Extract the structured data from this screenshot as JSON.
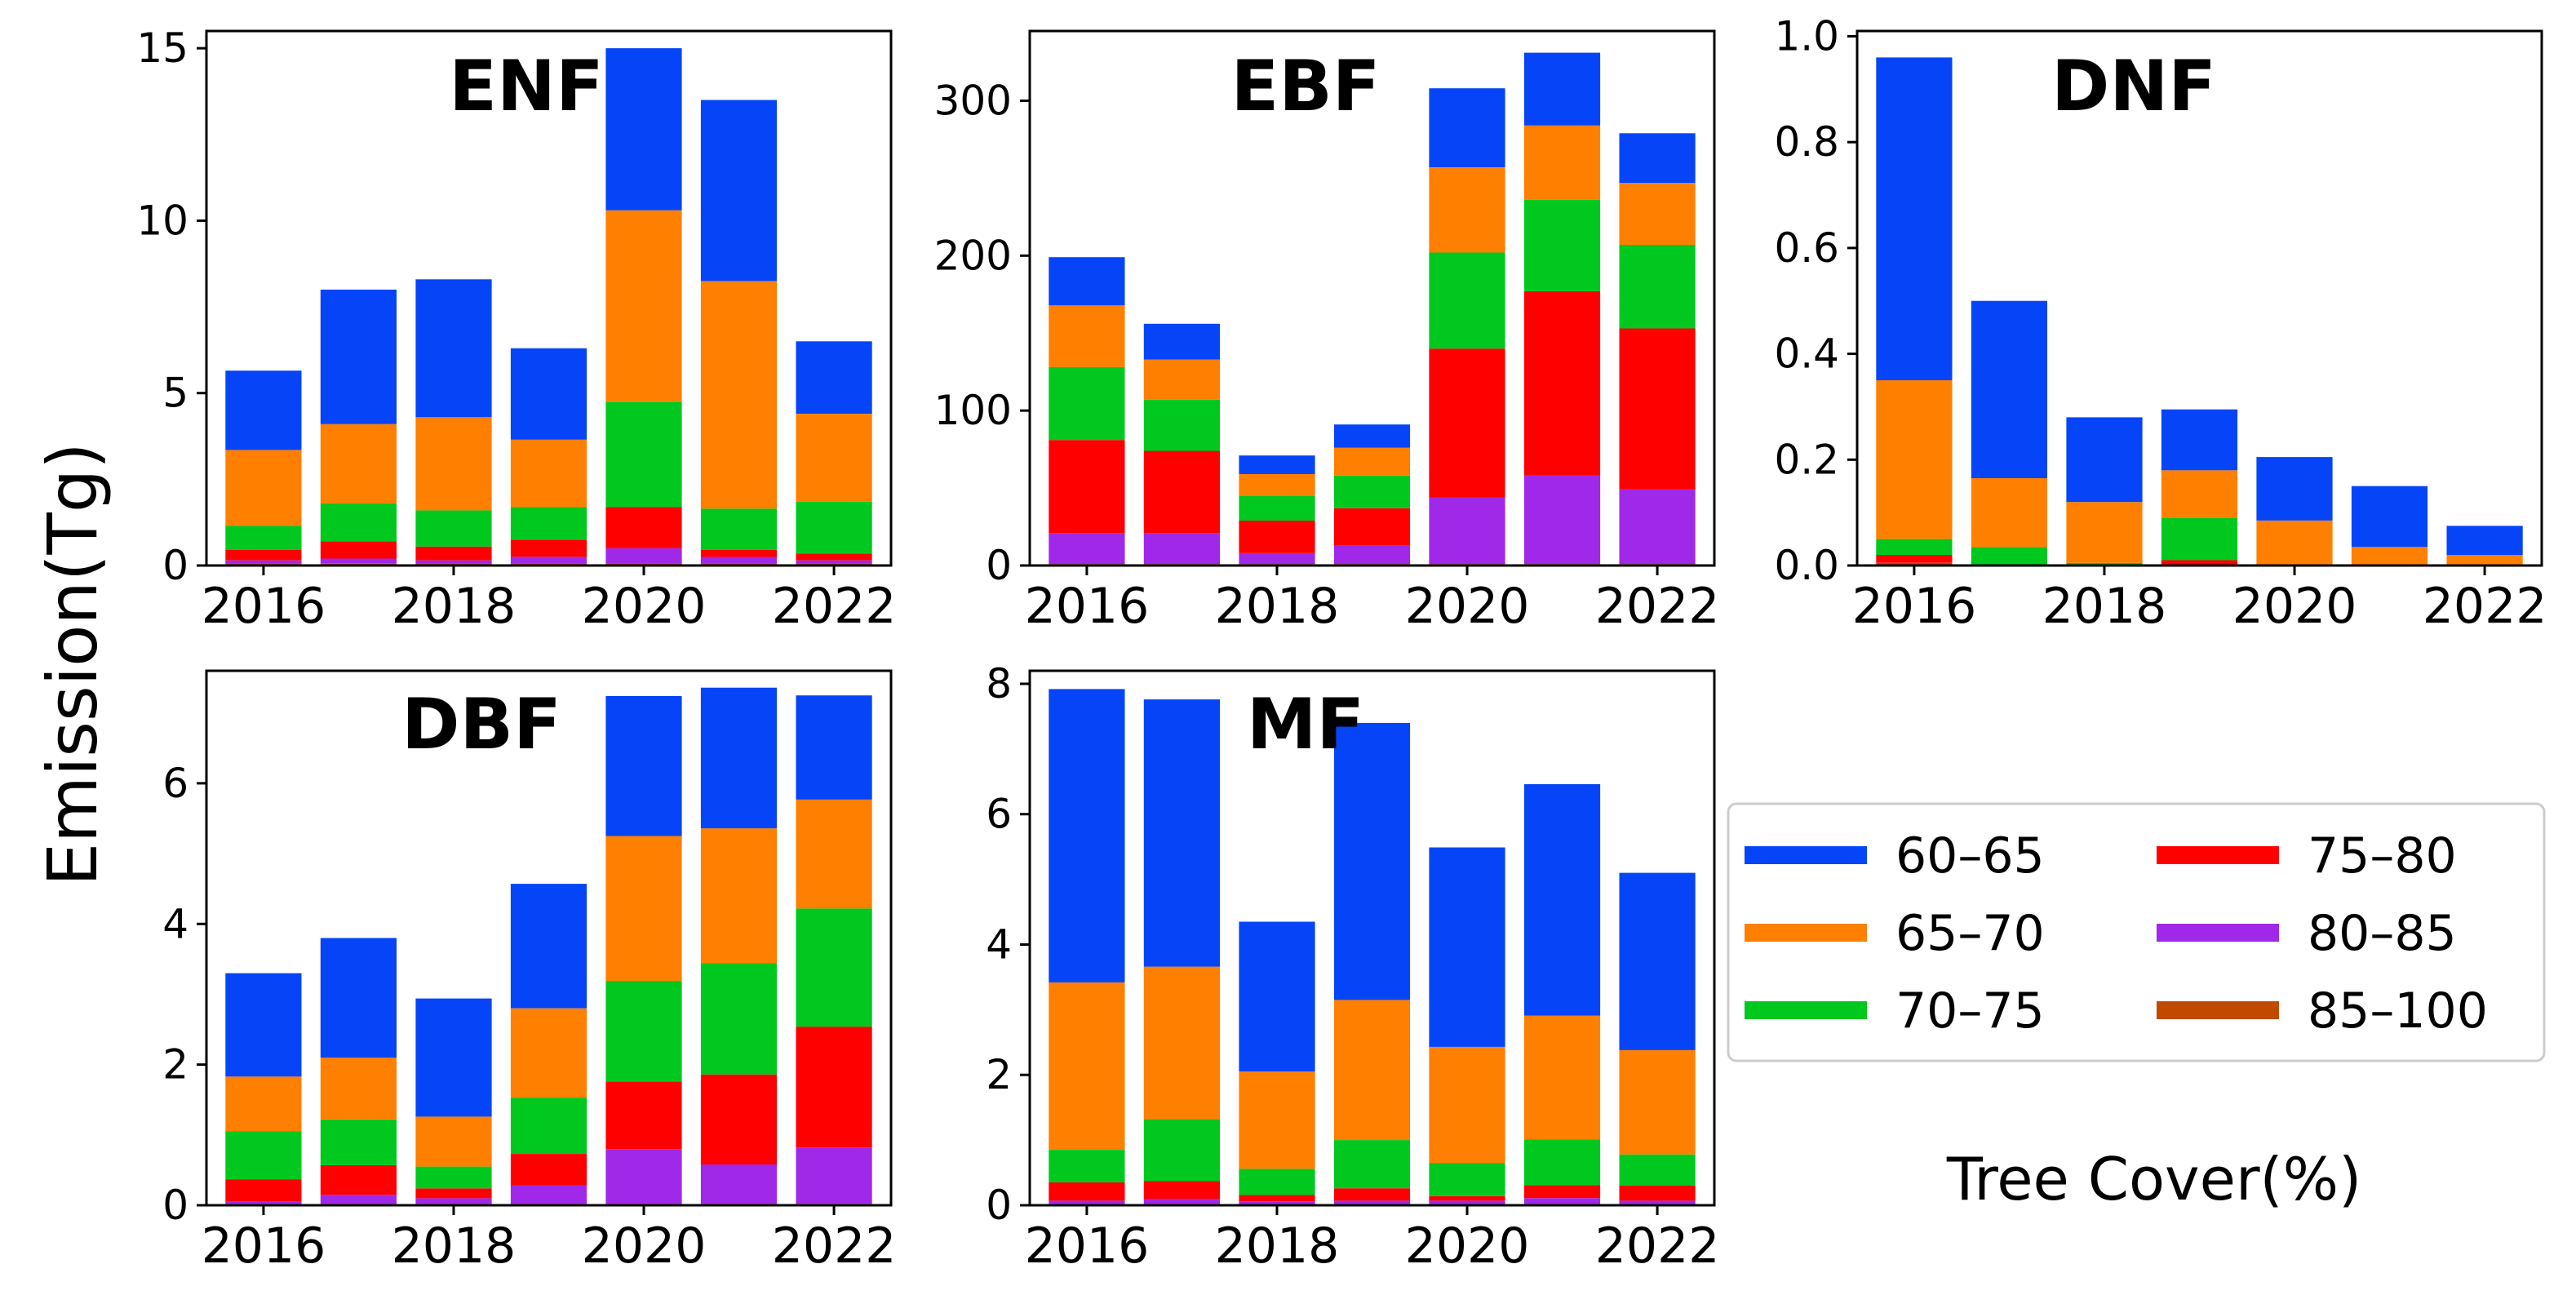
{
  "figure": {
    "ylabel": "Emission(Tg)",
    "legend_title": "Tree Cover(%)"
  },
  "colors": {
    "60–65": "#0545f7",
    "65–70": "#ff7f00",
    "70–75": "#00c81e",
    "75–80": "#ff0000",
    "80–85": "#a028e8",
    "85–100": "#bf4a00"
  },
  "chart_data": [
    {
      "type": "bar",
      "stacked": true,
      "title": "ENF",
      "x": [
        2016,
        2017,
        2018,
        2019,
        2020,
        2021,
        2022
      ],
      "xticks": [
        "2016",
        "2018",
        "2020",
        "2022"
      ],
      "ylim": [
        0,
        15.5
      ],
      "yticks": [
        "0",
        "5",
        "10",
        "15"
      ],
      "ytick_values": [
        0,
        5,
        10,
        15
      ],
      "series": [
        {
          "name": "85–100",
          "values": [
            0.05,
            0.05,
            0.05,
            0.05,
            0.05,
            0.05,
            0.05
          ]
        },
        {
          "name": "80–85",
          "values": [
            0.1,
            0.15,
            0.1,
            0.2,
            0.45,
            0.2,
            0.1
          ]
        },
        {
          "name": "75–80",
          "values": [
            0.3,
            0.5,
            0.4,
            0.5,
            1.2,
            0.2,
            0.2
          ]
        },
        {
          "name": "70–75",
          "values": [
            0.7,
            1.1,
            1.05,
            0.95,
            3.05,
            1.2,
            1.5
          ]
        },
        {
          "name": "65–70",
          "values": [
            2.2,
            2.3,
            2.7,
            1.95,
            5.55,
            6.6,
            2.55
          ]
        },
        {
          "name": "60–65",
          "values": [
            2.3,
            3.9,
            4.0,
            2.65,
            4.7,
            5.25,
            2.1
          ]
        }
      ]
    },
    {
      "type": "bar",
      "stacked": true,
      "title": "EBF",
      "x": [
        2016,
        2017,
        2018,
        2019,
        2020,
        2021,
        2022
      ],
      "xticks": [
        "2016",
        "2018",
        "2020",
        "2022"
      ],
      "ylim": [
        0,
        345
      ],
      "yticks": [
        "0",
        "100",
        "200",
        "300"
      ],
      "ytick_values": [
        0,
        100,
        200,
        300
      ],
      "series": [
        {
          "name": "85–100",
          "values": [
            1,
            1,
            1,
            1,
            1,
            1,
            1
          ]
        },
        {
          "name": "80–85",
          "values": [
            20,
            20,
            7,
            12,
            43,
            57,
            48
          ]
        },
        {
          "name": "75–80",
          "values": [
            60,
            53,
            21,
            24,
            96,
            119,
            104
          ]
        },
        {
          "name": "70–75",
          "values": [
            47,
            33,
            16,
            21,
            62,
            59,
            54
          ]
        },
        {
          "name": "65–70",
          "values": [
            40,
            26,
            14,
            18,
            55,
            48,
            40
          ]
        },
        {
          "name": "60–65",
          "values": [
            31,
            23,
            12,
            15,
            51,
            47,
            32
          ]
        }
      ]
    },
    {
      "type": "bar",
      "stacked": true,
      "title": "DNF",
      "x": [
        2016,
        2017,
        2018,
        2019,
        2020,
        2021,
        2022
      ],
      "xticks": [
        "2016",
        "2018",
        "2020",
        "2022"
      ],
      "ylim": [
        0,
        1.01
      ],
      "yticks": [
        "0.0",
        "0.2",
        "0.4",
        "0.6",
        "0.8",
        "1.0"
      ],
      "ytick_values": [
        0,
        0.2,
        0.4,
        0.6,
        0.8,
        1.0
      ],
      "series": [
        {
          "name": "85–100",
          "values": [
            0.005,
            0.0,
            0.0,
            0.0,
            0.0,
            0.0,
            0.0
          ]
        },
        {
          "name": "80–85",
          "values": [
            0.0,
            0.0,
            0.0,
            0.0,
            0.0,
            0.0,
            0.0
          ]
        },
        {
          "name": "75–80",
          "values": [
            0.015,
            0.0,
            0.0,
            0.01,
            0.0,
            0.0,
            0.0
          ]
        },
        {
          "name": "70–75",
          "values": [
            0.03,
            0.035,
            0.005,
            0.08,
            0.0,
            0.0,
            0.0
          ]
        },
        {
          "name": "65–70",
          "values": [
            0.3,
            0.13,
            0.115,
            0.09,
            0.085,
            0.035,
            0.02
          ]
        },
        {
          "name": "60–65",
          "values": [
            0.61,
            0.335,
            0.16,
            0.115,
            0.12,
            0.115,
            0.055
          ]
        }
      ]
    },
    {
      "type": "bar",
      "stacked": true,
      "title": "DBF",
      "x": [
        2016,
        2017,
        2018,
        2019,
        2020,
        2021,
        2022
      ],
      "xticks": [
        "2016",
        "2018",
        "2020",
        "2022"
      ],
      "ylim": [
        0,
        7.6
      ],
      "yticks": [
        "0",
        "2",
        "4",
        "6"
      ],
      "ytick_values": [
        0,
        2,
        4,
        6
      ],
      "series": [
        {
          "name": "85–100",
          "values": [
            0.02,
            0.02,
            0.02,
            0.02,
            0.02,
            0.02,
            0.02
          ]
        },
        {
          "name": "80–85",
          "values": [
            0.03,
            0.13,
            0.08,
            0.26,
            0.78,
            0.56,
            0.8
          ]
        },
        {
          "name": "75–80",
          "values": [
            0.32,
            0.42,
            0.14,
            0.45,
            0.96,
            1.28,
            1.72
          ]
        },
        {
          "name": "70–75",
          "values": [
            0.68,
            0.65,
            0.31,
            0.8,
            1.43,
            1.58,
            1.68
          ]
        },
        {
          "name": "65–70",
          "values": [
            0.78,
            0.88,
            0.71,
            1.27,
            2.06,
            1.92,
            1.55
          ]
        },
        {
          "name": "60–65",
          "values": [
            1.47,
            1.7,
            1.68,
            1.77,
            1.99,
            2.0,
            1.48
          ]
        }
      ]
    },
    {
      "type": "bar",
      "stacked": true,
      "title": "MF",
      "x": [
        2016,
        2017,
        2018,
        2019,
        2020,
        2021,
        2022
      ],
      "xticks": [
        "2016",
        "2018",
        "2020",
        "2022"
      ],
      "ylim": [
        0,
        8.2
      ],
      "yticks": [
        "0",
        "2",
        "4",
        "6",
        "8"
      ],
      "ytick_values": [
        0,
        2,
        4,
        6,
        8
      ],
      "series": [
        {
          "name": "85–100",
          "values": [
            0.02,
            0.02,
            0.02,
            0.02,
            0.02,
            0.02,
            0.02
          ]
        },
        {
          "name": "80–85",
          "values": [
            0.05,
            0.08,
            0.04,
            0.05,
            0.05,
            0.09,
            0.05
          ]
        },
        {
          "name": "75–80",
          "values": [
            0.28,
            0.27,
            0.1,
            0.19,
            0.07,
            0.2,
            0.23
          ]
        },
        {
          "name": "70–75",
          "values": [
            0.5,
            0.95,
            0.4,
            0.74,
            0.51,
            0.7,
            0.48
          ]
        },
        {
          "name": "65–70",
          "values": [
            2.57,
            2.34,
            1.49,
            2.15,
            1.78,
            1.9,
            1.6
          ]
        },
        {
          "name": "60–65",
          "values": [
            4.5,
            4.1,
            2.3,
            4.25,
            3.06,
            3.55,
            2.72
          ]
        }
      ]
    }
  ]
}
